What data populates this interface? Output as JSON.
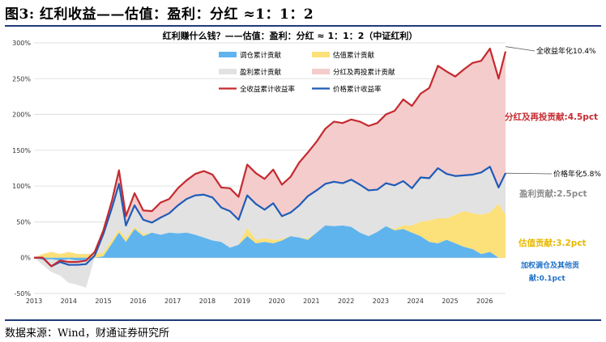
{
  "header": {
    "title": "图3: 红利收益——估值：盈利：分红 ≈1：1：2"
  },
  "footer": {
    "source": "数据来源：Wind，财通证券研究所"
  },
  "colors": {
    "rebalance": "#5fb4ee",
    "valuation": "#fce079",
    "earnings": "#e2e2e2",
    "dividend": "#f4cccc",
    "total_line": "#c42a2f",
    "price_line": "#1f5cb8",
    "rule": "#1f3a78"
  },
  "chart_data": {
    "type": "area",
    "title": "红利赚什么钱？——估值：盈利：分红 ≈ 1：1：2（中证红利）",
    "ylim": [
      -50,
      300
    ],
    "yticks": [
      -50,
      0,
      50,
      100,
      150,
      200,
      250,
      300
    ],
    "ytick_labels": [
      "-50%",
      "0%",
      "50%",
      "100%",
      "150%",
      "200%",
      "250%",
      "300%"
    ],
    "xticks": [
      "2013",
      "2014",
      "2015",
      "2016",
      "2017",
      "2018",
      "2019",
      "2020",
      "2021",
      "2022",
      "2023",
      "2024",
      "2025",
      "2026"
    ],
    "xtick_positions": [
      2013,
      2014,
      2015,
      2016,
      2017,
      2018,
      2019,
      2020,
      2021,
      2022,
      2023,
      2024,
      2025,
      2026
    ],
    "x": [
      2013.0,
      2013.25,
      2013.5,
      2013.75,
      2014.0,
      2014.25,
      2014.5,
      2014.75,
      2015.0,
      2015.25,
      2015.45,
      2015.65,
      2015.9,
      2016.15,
      2016.4,
      2016.65,
      2016.9,
      2017.15,
      2017.4,
      2017.65,
      2017.9,
      2018.15,
      2018.4,
      2018.65,
      2018.9,
      2019.15,
      2019.4,
      2019.65,
      2019.9,
      2020.15,
      2020.4,
      2020.65,
      2020.9,
      2021.15,
      2021.4,
      2021.65,
      2021.9,
      2022.15,
      2022.4,
      2022.65,
      2022.9,
      2023.15,
      2023.4,
      2023.65,
      2023.9,
      2024.15,
      2024.4,
      2024.65,
      2024.9,
      2025.15,
      2025.4,
      2025.65,
      2025.9,
      2026.15,
      2026.4,
      2026.6
    ],
    "series": [
      {
        "name": "调仓累计贡献",
        "key": "rebalance",
        "values": [
          0,
          -3,
          -2,
          -4,
          -2,
          -4,
          -3,
          0,
          2,
          20,
          35,
          22,
          40,
          30,
          35,
          32,
          35,
          34,
          35,
          32,
          28,
          24,
          22,
          14,
          18,
          30,
          20,
          22,
          20,
          24,
          30,
          28,
          25,
          35,
          45,
          44,
          45,
          43,
          35,
          30,
          36,
          44,
          38,
          40,
          35,
          30,
          22,
          20,
          25,
          20,
          15,
          12,
          5,
          8,
          0,
          0
        ]
      },
      {
        "name": "估值累计贡献",
        "key": "valuation",
        "values": [
          0,
          5,
          8,
          5,
          8,
          5,
          5,
          5,
          5,
          5,
          4,
          5,
          3,
          3,
          0,
          0,
          0,
          0,
          0,
          0,
          0,
          0,
          0,
          0,
          0,
          12,
          5,
          5,
          5,
          2,
          0,
          0,
          2,
          0,
          0,
          0,
          0,
          0,
          0,
          0,
          0,
          0,
          2,
          5,
          10,
          20,
          30,
          35,
          30,
          40,
          50,
          50,
          55,
          55,
          75,
          60
        ]
      },
      {
        "name": "盈利累计贡献",
        "key": "earnings",
        "values": [
          0,
          -10,
          -20,
          -25,
          -35,
          -38,
          -42,
          0,
          0,
          0,
          0,
          0,
          0,
          0,
          0,
          0,
          0,
          0,
          0,
          0,
          0,
          0,
          0,
          0,
          0,
          0,
          0,
          0,
          0,
          0,
          0,
          0,
          0,
          0,
          0,
          0,
          0,
          0,
          0,
          0,
          0,
          0,
          0,
          0,
          0,
          0,
          0,
          0,
          0,
          0,
          0,
          0,
          0,
          0,
          0,
          0
        ]
      },
      {
        "name": "分红及再投累计贡献",
        "key": "dividend",
        "values": [
          0,
          0,
          0,
          0,
          0,
          0,
          0,
          0,
          0,
          0,
          0,
          0,
          0,
          0,
          0,
          0,
          0,
          0,
          0,
          0,
          0,
          0,
          0,
          0,
          0,
          0,
          0,
          0,
          0,
          0,
          0,
          0,
          0,
          0,
          0,
          0,
          0,
          0,
          0,
          0,
          0,
          0,
          0,
          0,
          0,
          0,
          0,
          0,
          0,
          0,
          0,
          0,
          0,
          0,
          0,
          0
        ]
      },
      {
        "name": "全收益累计收益率",
        "key": "total_line",
        "values": [
          0,
          0,
          -12,
          -4,
          -6,
          -6,
          -4,
          8,
          38,
          80,
          122,
          58,
          90,
          66,
          65,
          77,
          82,
          97,
          108,
          117,
          121,
          116,
          98,
          97,
          85,
          130,
          118,
          110,
          123,
          102,
          113,
          133,
          147,
          162,
          180,
          190,
          188,
          193,
          190,
          184,
          188,
          200,
          205,
          221,
          212,
          229,
          237,
          268,
          260,
          253,
          263,
          272,
          275,
          292,
          250,
          288
        ]
      },
      {
        "name": "价格累计收益率",
        "key": "price_line",
        "values": [
          0,
          0,
          -12,
          -6,
          -10,
          -10,
          -9,
          3,
          33,
          70,
          103,
          45,
          73,
          53,
          49,
          56,
          62,
          73,
          82,
          87,
          88,
          84,
          70,
          65,
          53,
          87,
          75,
          67,
          76,
          58,
          63,
          73,
          86,
          94,
          103,
          106,
          104,
          109,
          102,
          94,
          95,
          104,
          101,
          107,
          97,
          112,
          111,
          125,
          117,
          114,
          115,
          116,
          119,
          127,
          98,
          118
        ]
      }
    ],
    "legend": [
      {
        "label": "调仓累计贡献",
        "key": "rebalance",
        "style": "swatch"
      },
      {
        "label": "估值累计贡献",
        "key": "valuation",
        "style": "swatch"
      },
      {
        "label": "盈利累计贡献",
        "key": "earnings",
        "style": "swatch"
      },
      {
        "label": "分红及再投累计贡献",
        "key": "dividend",
        "style": "swatch"
      },
      {
        "label": "全收益累计收益率",
        "key": "total_line",
        "style": "line"
      },
      {
        "label": "价格累计收益率",
        "key": "price_line",
        "style": "line"
      }
    ],
    "legend_placement": "top-center",
    "annotations": {
      "total_annual": "全收益年化10.4%",
      "price_annual": "价格年化5.8%",
      "dividend_contrib": "分红及再投贡献:4.5pct",
      "earnings_contrib": "盈利贡献:2.5pct",
      "valuation_contrib": "估值贡献:3.2pct",
      "rebalance_contrib_1": "加权调仓及其他贡",
      "rebalance_contrib_2": "献:0.1pct"
    }
  }
}
